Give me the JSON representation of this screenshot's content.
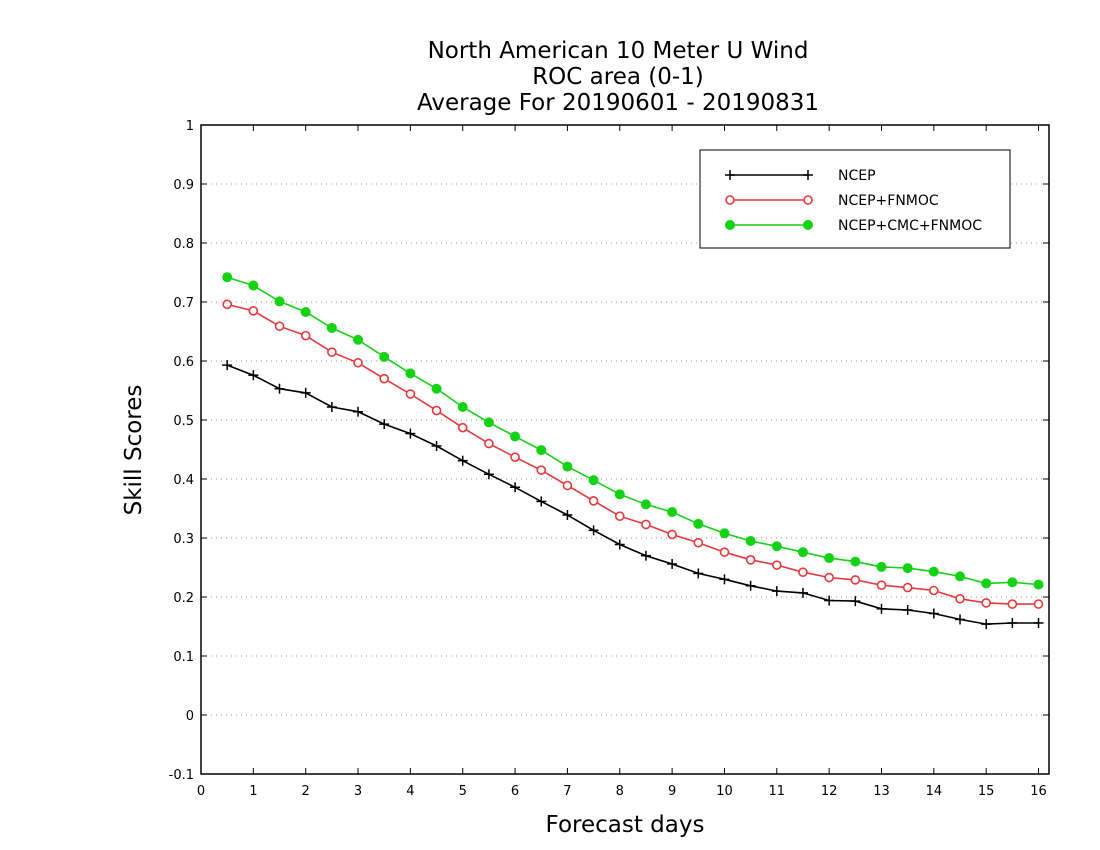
{
  "chart_data": {
    "type": "line",
    "title": [
      "North American 10 Meter U Wind",
      "ROC area (0-1)",
      "Average For 20190601 - 20190831"
    ],
    "xlabel": "Forecast days",
    "ylabel": "Skill Scores",
    "xlim": [
      0,
      16.2
    ],
    "ylim": [
      -0.1,
      1
    ],
    "xticks": [
      0,
      1,
      2,
      3,
      4,
      5,
      6,
      7,
      8,
      9,
      10,
      11,
      12,
      13,
      14,
      15,
      16
    ],
    "yticks": [
      -0.1,
      0,
      0.1,
      0.2,
      0.3,
      0.4,
      0.5,
      0.6,
      0.7,
      0.8,
      0.9,
      1
    ],
    "ytick_labels": [
      "-0.1",
      "0",
      "0.1",
      "0.2",
      "0.3",
      "0.4",
      "0.5",
      "0.6",
      "0.7",
      "0.8",
      "0.9",
      "1"
    ],
    "grid": true,
    "legend_position": "top-right",
    "x": [
      0.5,
      1,
      1.5,
      2,
      2.5,
      3,
      3.5,
      4,
      4.5,
      5,
      5.5,
      6,
      6.5,
      7,
      7.5,
      8,
      8.5,
      9,
      9.5,
      10,
      10.5,
      11,
      11.5,
      12,
      12.5,
      13,
      13.5,
      14,
      14.5,
      15,
      15.5,
      16
    ],
    "series": [
      {
        "name": "NCEP",
        "color": "#000000",
        "marker": "plus",
        "values": [
          0.593,
          0.576,
          0.553,
          0.546,
          0.522,
          0.514,
          0.493,
          0.477,
          0.456,
          0.431,
          0.408,
          0.386,
          0.362,
          0.339,
          0.313,
          0.289,
          0.27,
          0.256,
          0.24,
          0.23,
          0.219,
          0.21,
          0.207,
          0.194,
          0.193,
          0.18,
          0.178,
          0.172,
          0.162,
          0.154,
          0.156,
          0.156
        ]
      },
      {
        "name": "NCEP+FNMOC",
        "color": "#e8383c",
        "marker": "open-circle",
        "values": [
          0.696,
          0.685,
          0.659,
          0.643,
          0.615,
          0.597,
          0.57,
          0.544,
          0.516,
          0.487,
          0.46,
          0.437,
          0.415,
          0.389,
          0.363,
          0.337,
          0.323,
          0.306,
          0.292,
          0.276,
          0.263,
          0.254,
          0.242,
          0.233,
          0.229,
          0.22,
          0.216,
          0.211,
          0.197,
          0.19,
          0.188,
          0.188
        ]
      },
      {
        "name": "NCEP+CMC+FNMOC",
        "color": "#14d214",
        "marker": "filled-circle",
        "values": [
          0.742,
          0.728,
          0.701,
          0.683,
          0.656,
          0.636,
          0.607,
          0.579,
          0.553,
          0.522,
          0.496,
          0.472,
          0.449,
          0.421,
          0.398,
          0.374,
          0.357,
          0.344,
          0.324,
          0.308,
          0.295,
          0.286,
          0.276,
          0.266,
          0.26,
          0.251,
          0.249,
          0.243,
          0.235,
          0.223,
          0.225,
          0.221
        ]
      }
    ]
  }
}
